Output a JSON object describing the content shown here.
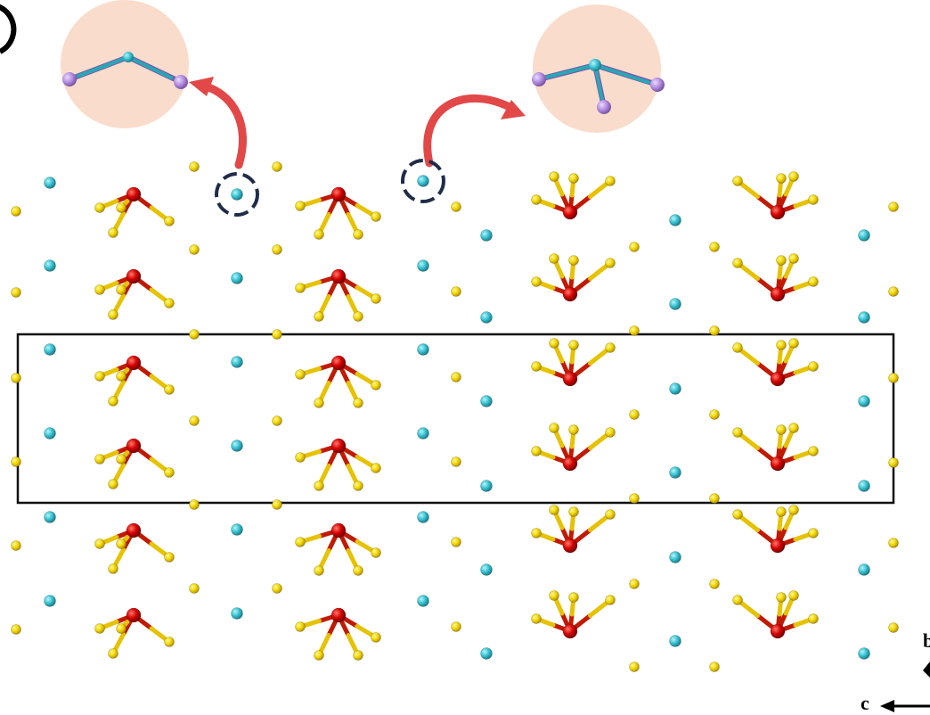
{
  "figure": {
    "panel_label": "",
    "axes": {
      "horizontal": "c",
      "vertical": "b"
    }
  },
  "colors": {
    "background": "#ffffff",
    "gold_atom": "#f2d800",
    "gold_atom_dark": "#c9a800",
    "red_atom": "#d40000",
    "cyan_atom": "#38c2d2",
    "purple_atom": "#b48ee0",
    "bond_gold": "#e6c200",
    "bond_red": "#c01a00",
    "inset_circle": "#f9d8c6",
    "arrow": "#e24848",
    "selection_ring": "#1f2d48",
    "unit_cell": "#111111"
  },
  "icons": {
    "inset_left": "linear-coordination-inset",
    "inset_right": "seesaw-coordination-inset",
    "unit_cell": "unit-cell-rectangle"
  }
}
